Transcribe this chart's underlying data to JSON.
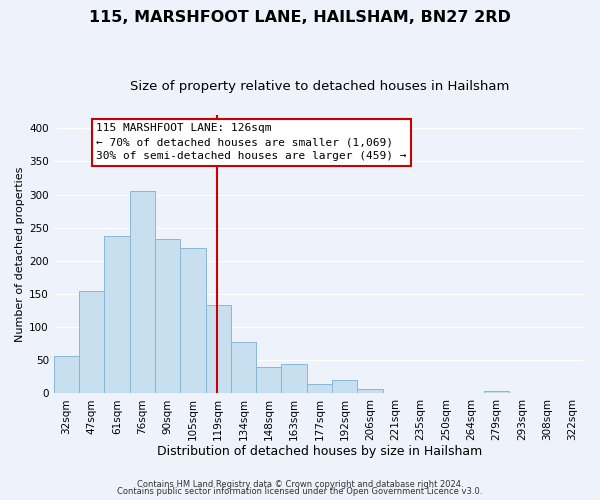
{
  "title": "115, MARSHFOOT LANE, HAILSHAM, BN27 2RD",
  "subtitle": "Size of property relative to detached houses in Hailsham",
  "xlabel": "Distribution of detached houses by size in Hailsham",
  "ylabel": "Number of detached properties",
  "bar_labels": [
    "32sqm",
    "47sqm",
    "61sqm",
    "76sqm",
    "90sqm",
    "105sqm",
    "119sqm",
    "134sqm",
    "148sqm",
    "163sqm",
    "177sqm",
    "192sqm",
    "206sqm",
    "221sqm",
    "235sqm",
    "250sqm",
    "264sqm",
    "279sqm",
    "293sqm",
    "308sqm",
    "322sqm"
  ],
  "bar_heights": [
    57,
    155,
    238,
    305,
    233,
    220,
    133,
    78,
    40,
    44,
    14,
    20,
    7,
    0,
    0,
    0,
    0,
    3,
    0,
    0,
    0
  ],
  "bar_color": "#c8dff0",
  "bar_edge_color": "#89b8d4",
  "ylim": [
    0,
    420
  ],
  "yticks": [
    0,
    50,
    100,
    150,
    200,
    250,
    300,
    350,
    400
  ],
  "vline_color": "#cc0000",
  "annotation_title": "115 MARSHFOOT LANE: 126sqm",
  "annotation_line1": "← 70% of detached houses are smaller (1,069)",
  "annotation_line2": "30% of semi-detached houses are larger (459) →",
  "annotation_box_facecolor": "#ffffff",
  "annotation_box_edgecolor": "#cc0000",
  "footnote1": "Contains HM Land Registry data © Crown copyright and database right 2024.",
  "footnote2": "Contains public sector information licensed under the Open Government Licence v3.0.",
  "background_color": "#eef2fb",
  "grid_color": "#ffffff",
  "title_fontsize": 11.5,
  "subtitle_fontsize": 9.5,
  "xlabel_fontsize": 9,
  "ylabel_fontsize": 8,
  "tick_fontsize": 7.5,
  "annot_fontsize": 8,
  "footnote_fontsize": 6
}
